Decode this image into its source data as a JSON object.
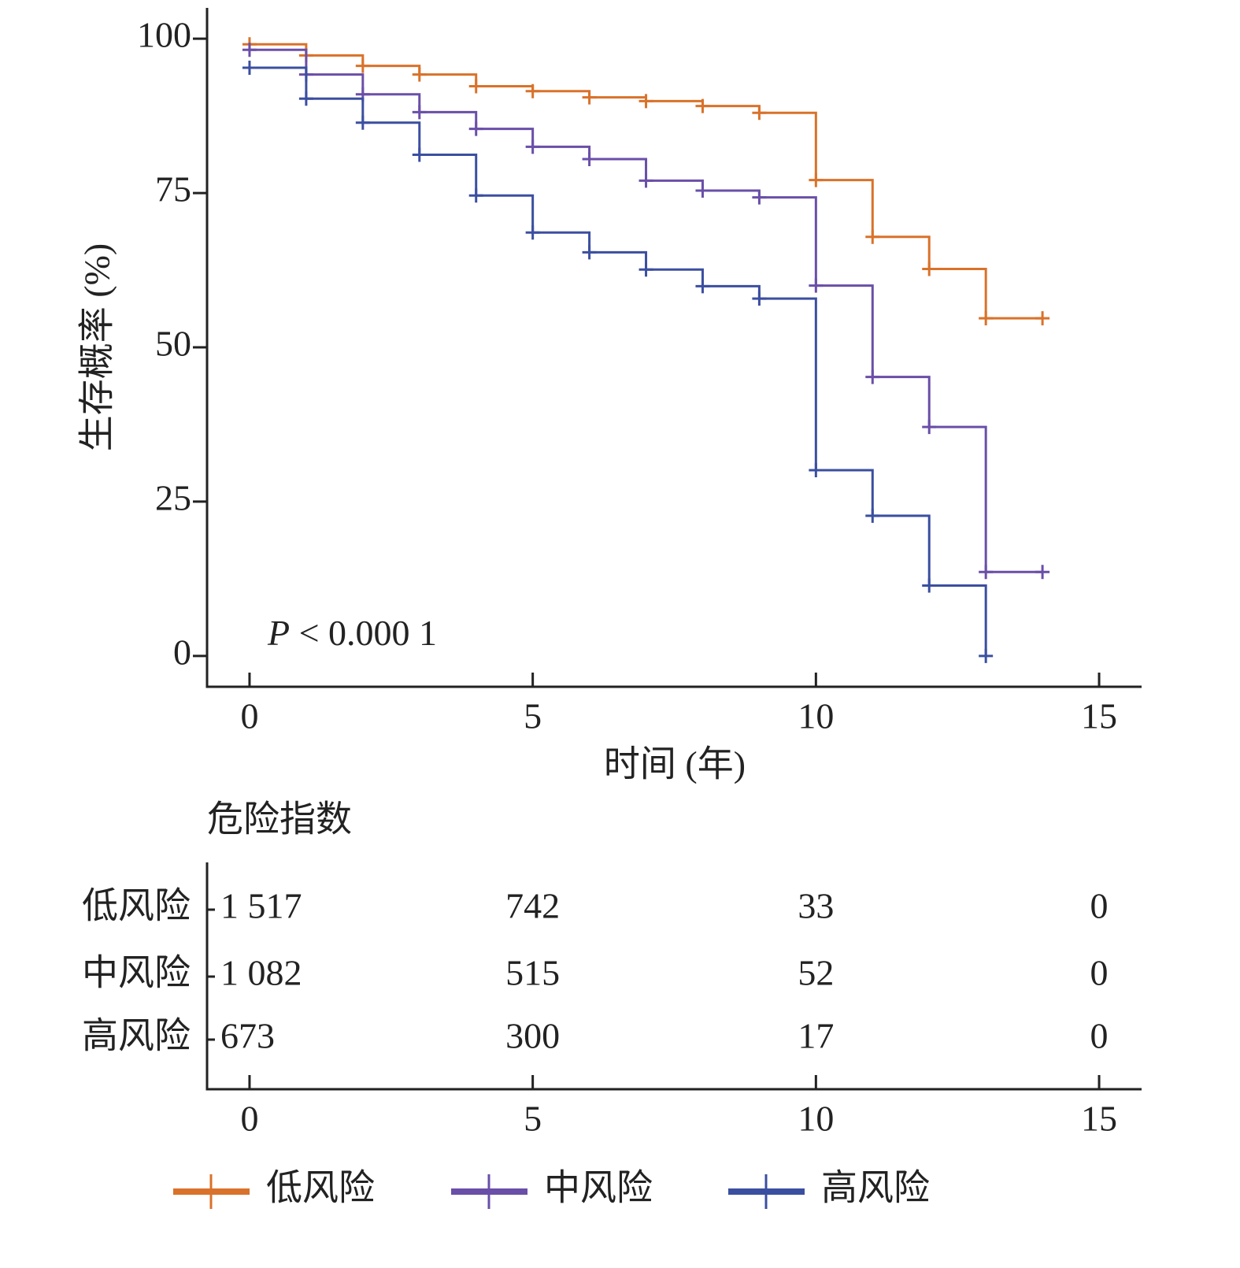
{
  "chart_data": {
    "type": "step",
    "y_label": "生存概率 (%)",
    "x_label": "时间 (年)",
    "annotation": {
      "symbol": "P",
      "text": "< 0.000 1"
    },
    "xlim": [
      -0.75,
      15.75
    ],
    "ylim": [
      -5,
      105
    ],
    "xticks": [
      0,
      5,
      10,
      15
    ],
    "yticks": [
      0,
      25,
      50,
      75,
      100
    ],
    "series": [
      {
        "name": "低风险",
        "color": "#d9722a",
        "x": [
          0,
          1,
          2,
          3,
          4,
          5,
          6,
          7,
          8,
          9,
          10,
          11,
          12,
          13,
          14
        ],
        "values": [
          99.1,
          97.3,
          95.6,
          94.2,
          92.3,
          91.5,
          90.5,
          89.9,
          89.1,
          88.0,
          77.1,
          67.9,
          62.7,
          54.7,
          54.7
        ]
      },
      {
        "name": "中风险",
        "color": "#6a4fa8",
        "x": [
          0,
          1,
          2,
          3,
          4,
          5,
          6,
          7,
          8,
          9,
          10,
          11,
          12,
          13,
          14
        ],
        "values": [
          98.2,
          94.2,
          91.0,
          88.1,
          85.4,
          82.5,
          80.5,
          77.0,
          75.4,
          74.3,
          60.0,
          45.2,
          37.1,
          13.6,
          13.6
        ]
      },
      {
        "name": "高风险",
        "color": "#3b4fa0",
        "x": [
          0,
          1,
          2,
          3,
          4,
          5,
          6,
          7,
          8,
          9,
          10,
          11,
          12,
          13
        ],
        "values": [
          95.3,
          90.3,
          86.4,
          81.2,
          74.6,
          68.6,
          65.4,
          62.6,
          59.9,
          57.9,
          30.1,
          22.7,
          11.4,
          0
        ]
      }
    ],
    "risk_table": {
      "title": "危险指数",
      "xticks": [
        0,
        5,
        10,
        15
      ],
      "rows": [
        {
          "name": "低风险",
          "color": "#c8743a",
          "values": [
            "1 517",
            "742",
            "33",
            "0"
          ]
        },
        {
          "name": "中风险",
          "color": "#6b5aa8",
          "values": [
            "1 082",
            "515",
            "52",
            "0"
          ]
        },
        {
          "name": "高风险",
          "color": "#3a56a0",
          "values": [
            "673",
            "300",
            "17",
            "0"
          ]
        }
      ]
    }
  }
}
